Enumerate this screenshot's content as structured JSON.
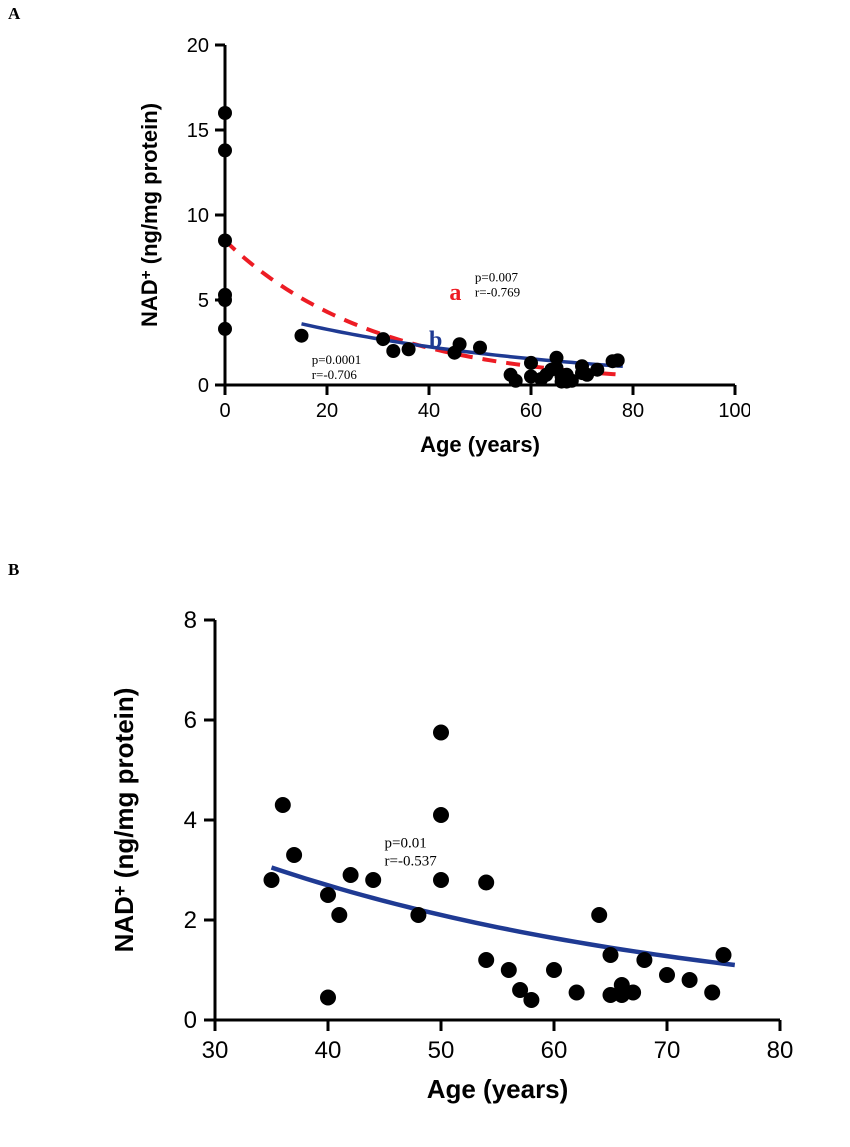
{
  "panelA": {
    "label": "A",
    "label_fontsize": 17,
    "label_color": "#000000",
    "chart": {
      "type": "scatter-with-fit",
      "xlabel": "Age (years)",
      "ylabel": "NAD+ (ng/mg protein)",
      "label_fontsize": 22,
      "tick_fontsize": 20,
      "xlim": [
        0,
        100
      ],
      "ylim": [
        0,
        20
      ],
      "xticks": [
        0,
        20,
        40,
        60,
        80,
        100
      ],
      "yticks": [
        0,
        5,
        10,
        15,
        20
      ],
      "axis_color": "#000000",
      "background_color": "#ffffff",
      "marker_radius": 7,
      "marker_color": "#000000",
      "points": [
        [
          0,
          3.3
        ],
        [
          0,
          5.0
        ],
        [
          0,
          5.3
        ],
        [
          0,
          8.5
        ],
        [
          0,
          13.8
        ],
        [
          0,
          16.0
        ],
        [
          15,
          2.9
        ],
        [
          31,
          2.7
        ],
        [
          33,
          2.0
        ],
        [
          36,
          2.1
        ],
        [
          45,
          1.9
        ],
        [
          46,
          2.4
        ],
        [
          50,
          2.2
        ],
        [
          56,
          0.6
        ],
        [
          57,
          0.25
        ],
        [
          60,
          0.5
        ],
        [
          60,
          1.3
        ],
        [
          62,
          0.35
        ],
        [
          63,
          0.6
        ],
        [
          64,
          0.9
        ],
        [
          65,
          1.0
        ],
        [
          65,
          1.6
        ],
        [
          66,
          0.5
        ],
        [
          66,
          0.2
        ],
        [
          67,
          0.6
        ],
        [
          67,
          0.2
        ],
        [
          68,
          0.25
        ],
        [
          70,
          0.7
        ],
        [
          70,
          1.1
        ],
        [
          71,
          0.6
        ],
        [
          73,
          0.9
        ],
        [
          76,
          1.4
        ],
        [
          77,
          1.45
        ]
      ],
      "curves": {
        "a": {
          "name": "a",
          "color": "#ed1c24",
          "width": 4,
          "dash": "14 10",
          "domain": [
            0,
            78
          ],
          "y0": 8.5,
          "k": 0.034,
          "label_pos": [
            44,
            5.0
          ],
          "label_fontsize": 24,
          "stats_pos": [
            49,
            6.1
          ],
          "p": "p=0.007",
          "r": "r=-0.769",
          "stats_fontsize": 13
        },
        "b": {
          "name": "b",
          "color": "#1f3a93",
          "width": 3.5,
          "domain": [
            15,
            78
          ],
          "y_start": 3.6,
          "y_end": 1.1,
          "label_pos": [
            40,
            2.2
          ],
          "label_fontsize": 24,
          "stats_pos": [
            17,
            2.3
          ],
          "p": "p=0.0001",
          "r": "r=-0.706",
          "stats_fontsize": 13
        }
      }
    }
  },
  "panelB": {
    "label": "B",
    "label_fontsize": 17,
    "label_color": "#000000",
    "chart": {
      "type": "scatter-with-fit",
      "xlabel": "Age (years)",
      "ylabel": "NAD+ (ng/mg protein)",
      "label_fontsize": 26,
      "tick_fontsize": 24,
      "xlim": [
        30,
        80
      ],
      "ylim": [
        0,
        8
      ],
      "xticks": [
        30,
        40,
        50,
        60,
        70,
        80
      ],
      "yticks": [
        0,
        2,
        4,
        6,
        8
      ],
      "axis_color": "#000000",
      "background_color": "#ffffff",
      "marker_radius": 8,
      "marker_color": "#000000",
      "points": [
        [
          35,
          2.8
        ],
        [
          36,
          4.3
        ],
        [
          37,
          3.3
        ],
        [
          40,
          2.5
        ],
        [
          40,
          0.45
        ],
        [
          41,
          2.1
        ],
        [
          42,
          2.9
        ],
        [
          44,
          2.8
        ],
        [
          48,
          2.1
        ],
        [
          50,
          2.8
        ],
        [
          50,
          4.1
        ],
        [
          50,
          5.75
        ],
        [
          54,
          1.2
        ],
        [
          54,
          2.75
        ],
        [
          56,
          1.0
        ],
        [
          57,
          0.6
        ],
        [
          58,
          0.4
        ],
        [
          60,
          1.0
        ],
        [
          62,
          0.55
        ],
        [
          64,
          2.1
        ],
        [
          65,
          0.5
        ],
        [
          65,
          1.3
        ],
        [
          66,
          0.7
        ],
        [
          66,
          0.5
        ],
        [
          67,
          0.55
        ],
        [
          68,
          1.2
        ],
        [
          70,
          0.9
        ],
        [
          72,
          0.8
        ],
        [
          74,
          0.55
        ],
        [
          75,
          1.3
        ]
      ],
      "curve": {
        "color": "#1f3a93",
        "width": 4.5,
        "domain": [
          35,
          76
        ],
        "y_start": 3.05,
        "y_end": 1.1,
        "stats_pos": [
          45,
          3.45
        ],
        "p": "p=0.01",
        "r": "r=-0.537",
        "stats_fontsize": 15
      }
    }
  }
}
